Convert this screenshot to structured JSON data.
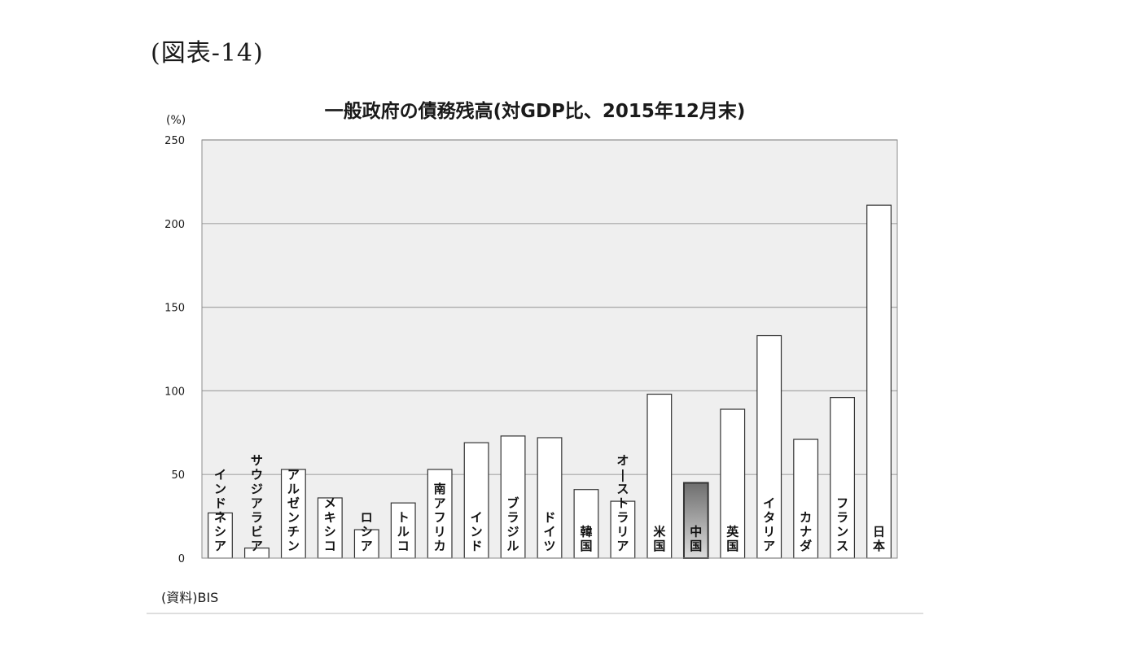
{
  "figure_number": "(図表-14)",
  "source_note": "(資料)BIS",
  "chart_data": {
    "type": "bar",
    "title": "一般政府の債務残高(対GDP比、2015年12月末)",
    "ylabel": "(%)",
    "xlabel": "",
    "ylim": [
      0,
      250
    ],
    "yticks": [
      0,
      50,
      100,
      150,
      200,
      250
    ],
    "grid": true,
    "legend": "none",
    "categories": [
      "インドネシア",
      "サウジアラビア",
      "アルゼンチン",
      "メキシコ",
      "ロシア",
      "トルコ",
      "南アフリカ",
      "インド",
      "ブラジル",
      "ドイツ",
      "韓国",
      "オーストラリア",
      "米国",
      "中国",
      "英国",
      "イタリア",
      "カナダ",
      "フランス",
      "日本"
    ],
    "values": [
      27,
      6,
      53,
      36,
      17,
      33,
      53,
      69,
      73,
      72,
      41,
      34,
      98,
      45,
      89,
      133,
      71,
      96,
      211
    ],
    "highlight": "中国",
    "colors": {
      "plot_background": "#efefef",
      "bar_fill": "#ffffff",
      "bar_stroke": "#333333",
      "highlight_gradient": [
        "#6e6e6e",
        "#dcdcdc"
      ],
      "gridline": "#a6a6a6"
    }
  }
}
